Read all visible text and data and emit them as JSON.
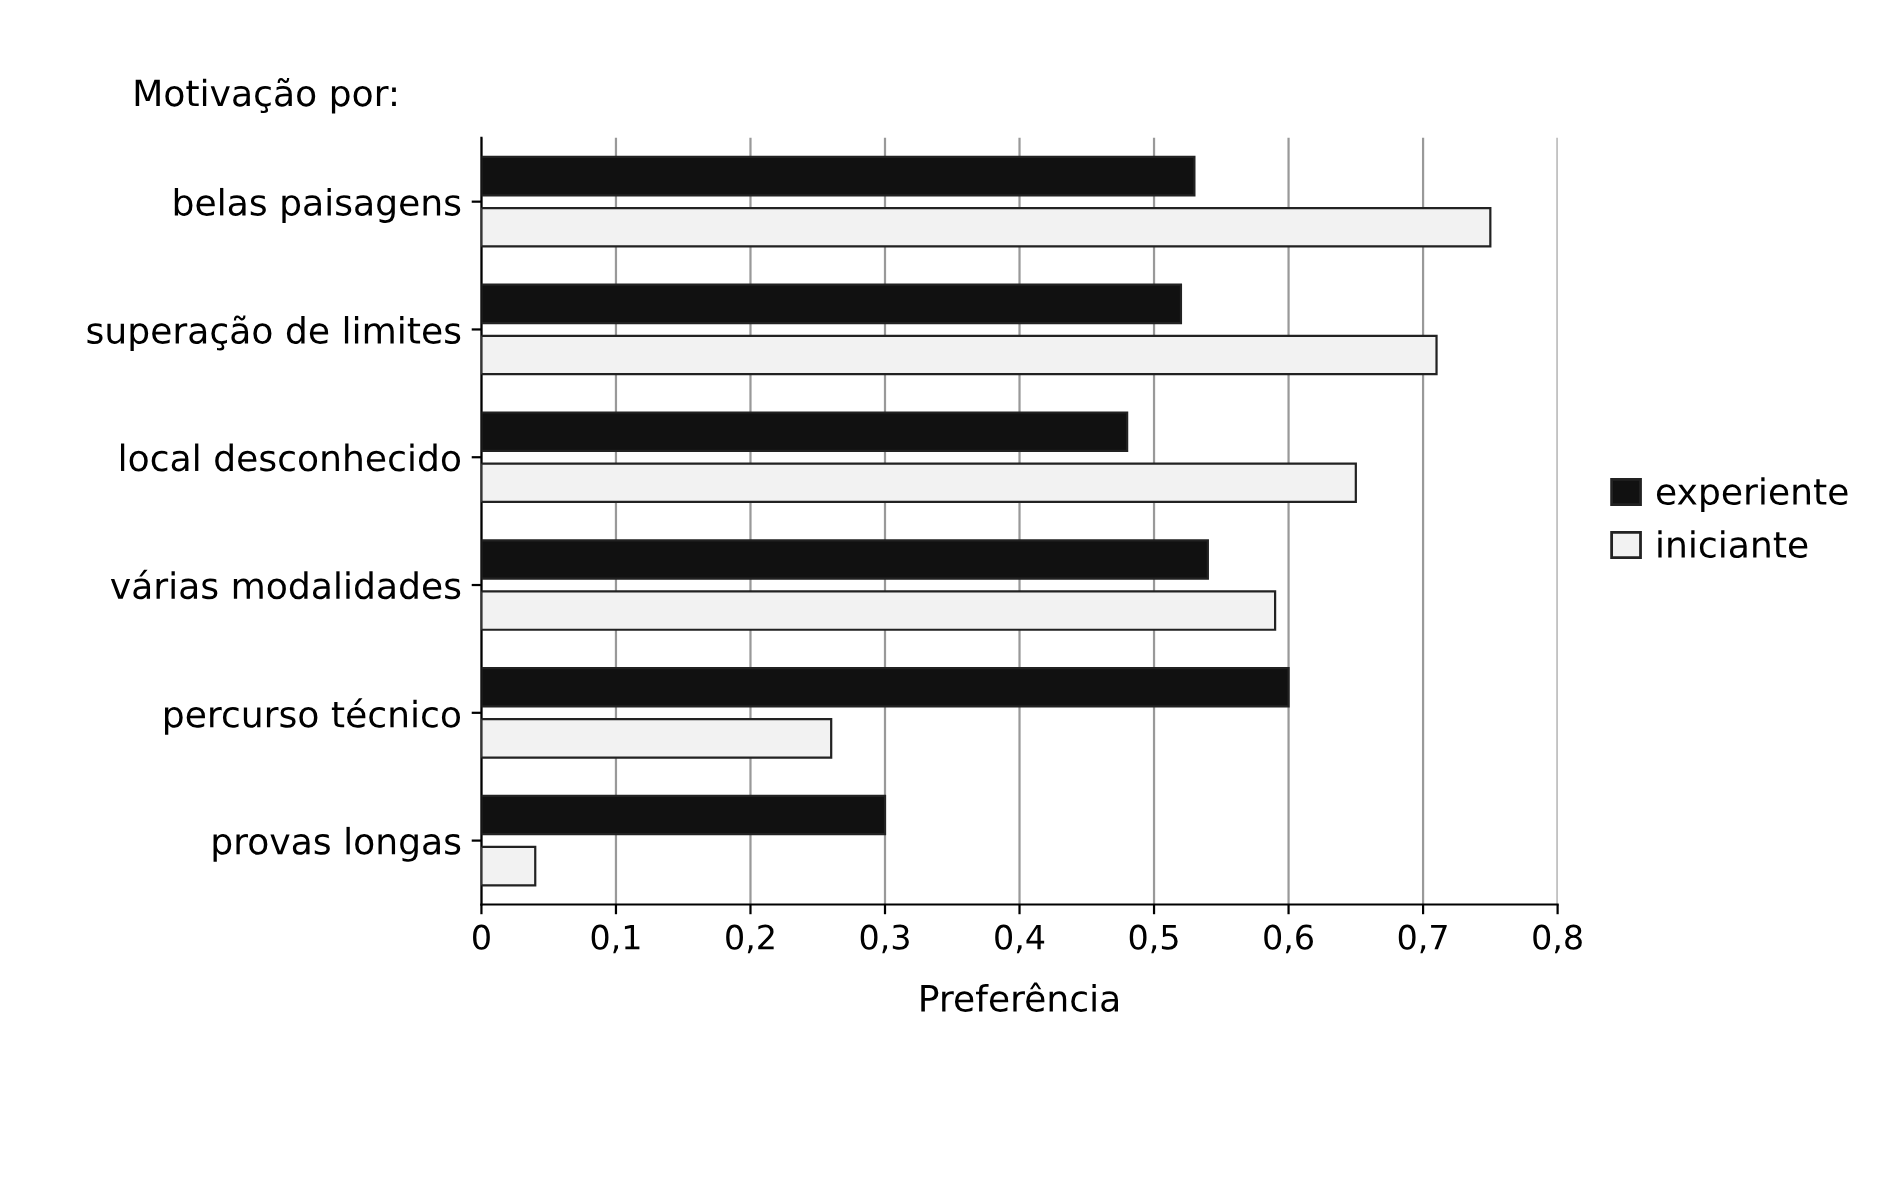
{
  "chart_data": {
    "type": "bar",
    "orientation": "horizontal",
    "title": "Motivação por:",
    "xlabel": "Preferência",
    "categories": [
      "belas paisagens",
      "superação de limites",
      "local desconhecido",
      "várias modalidades",
      "percurso técnico",
      "provas longas"
    ],
    "series": [
      {
        "name": "experiente",
        "color": "#111111",
        "values": [
          0.53,
          0.52,
          0.48,
          0.54,
          0.6,
          0.3
        ]
      },
      {
        "name": "iniciante",
        "color": "#f2f2f2",
        "values": [
          0.75,
          0.71,
          0.65,
          0.59,
          0.26,
          0.04
        ]
      }
    ],
    "xlim": [
      0,
      0.8
    ],
    "xticks": [
      {
        "value": 0,
        "label": "0"
      },
      {
        "value": 0.1,
        "label": "0,1"
      },
      {
        "value": 0.2,
        "label": "0,2"
      },
      {
        "value": 0.3,
        "label": "0,3"
      },
      {
        "value": 0.4,
        "label": "0,4"
      },
      {
        "value": 0.5,
        "label": "0,5"
      },
      {
        "value": 0.6,
        "label": "0,6"
      },
      {
        "value": 0.7,
        "label": "0,7"
      },
      {
        "value": 0.8,
        "label": "0,8"
      }
    ],
    "grid": "x",
    "legend": "right"
  }
}
